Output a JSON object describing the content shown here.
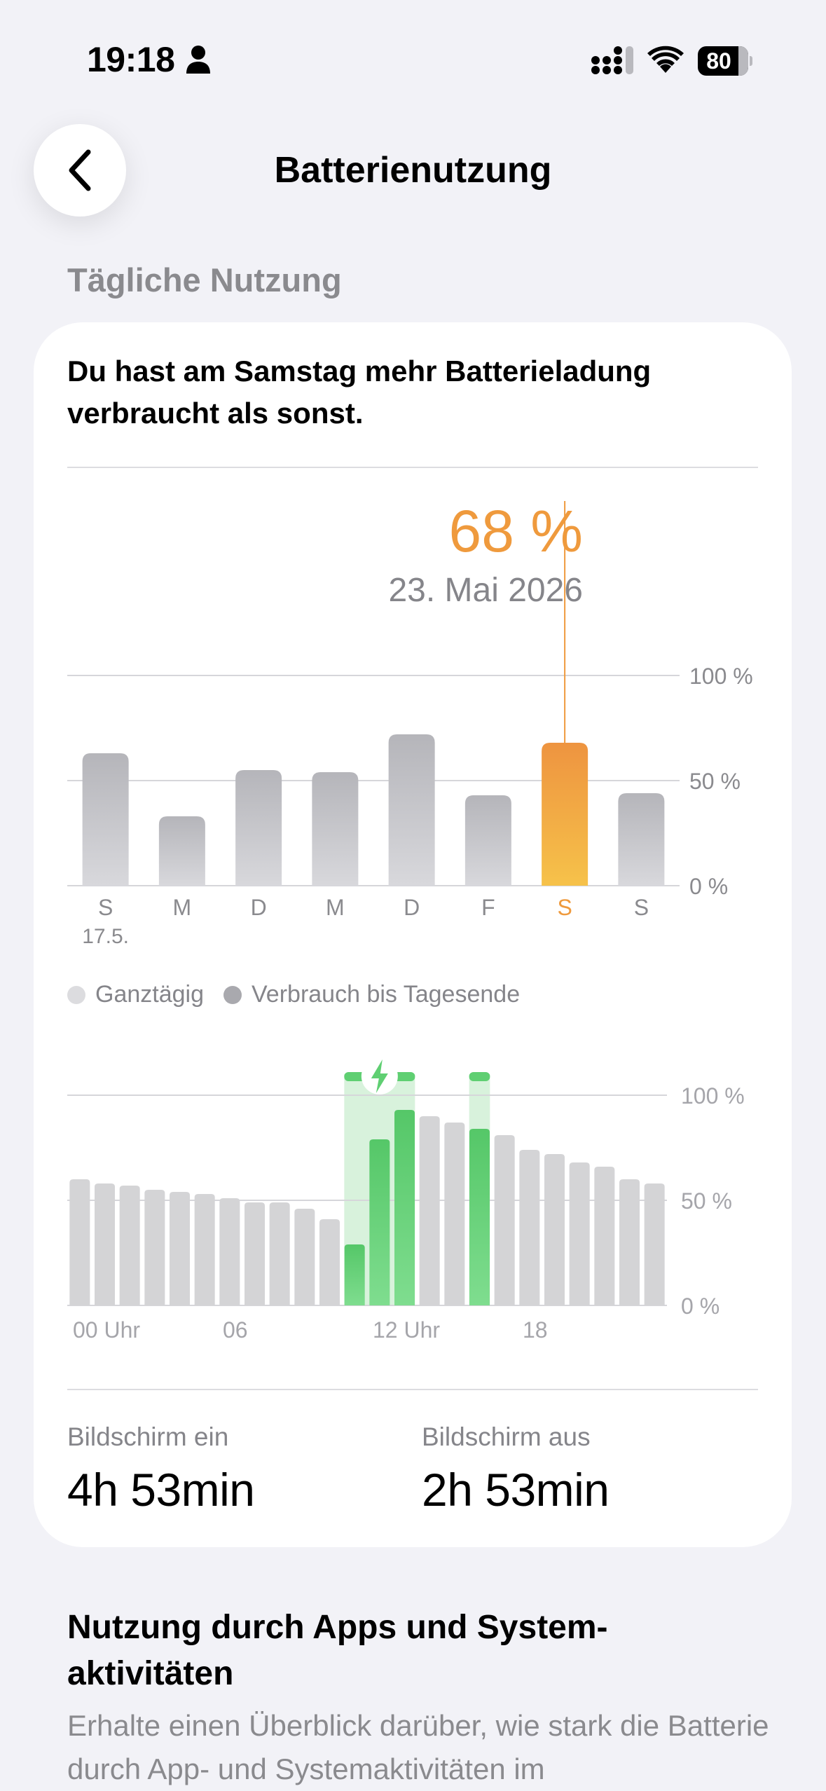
{
  "status_bar": {
    "time": "19:18",
    "battery_level": "80"
  },
  "nav": {
    "title": "Batterienutzung"
  },
  "section_header": "Tägliche Nutzung",
  "card": {
    "insight": "Du hast am Samstag mehr Batterieladung verbraucht als sonst.",
    "selection": {
      "value": "68 %",
      "date": "23. Mai 2026"
    },
    "legend": [
      "Ganztägig",
      "Verbrauch bis Tagesende"
    ],
    "stats": [
      {
        "label": "Bildschirm ein",
        "value": "4h 53min"
      },
      {
        "label": "Bildschirm aus",
        "value": "2h 53min"
      }
    ]
  },
  "chart_data": [
    {
      "type": "bar",
      "categories": [
        "S",
        "M",
        "D",
        "M",
        "D",
        "F",
        "S",
        "S"
      ],
      "sublabels": [
        "17.5.",
        "",
        "",
        "",
        "",
        "",
        "",
        ""
      ],
      "values": [
        63,
        33,
        55,
        54,
        72,
        43,
        68,
        44
      ],
      "selected_index": 6,
      "ylim": [
        0,
        100
      ],
      "yticks": [
        "100 %",
        "50 %",
        "0 %"
      ],
      "ytick_values": [
        100,
        50,
        0
      ],
      "colors": {
        "bar": "#b5b5ba",
        "selected": "#f2a23c",
        "selected_light": "#f6c24a"
      }
    },
    {
      "type": "bar",
      "x": [
        0,
        1,
        2,
        3,
        4,
        5,
        6,
        7,
        8,
        9,
        10,
        11,
        12,
        13,
        14,
        15,
        16,
        17,
        18,
        19,
        20,
        21,
        22,
        23
      ],
      "values": [
        60,
        58,
        57,
        55,
        54,
        53,
        51,
        49,
        49,
        46,
        41,
        29,
        79,
        93,
        90,
        87,
        84,
        81,
        74,
        72,
        68,
        66,
        60,
        58
      ],
      "charging": [
        false,
        false,
        false,
        false,
        false,
        false,
        false,
        false,
        false,
        false,
        false,
        true,
        true,
        true,
        false,
        false,
        true,
        false,
        false,
        false,
        false,
        false,
        false,
        false
      ],
      "charging_periods": [
        [
          11,
          13
        ],
        [
          16,
          16
        ]
      ],
      "xticks": [
        {
          "hour": 0,
          "label": "00 Uhr"
        },
        {
          "hour": 6,
          "label": "06"
        },
        {
          "hour": 12,
          "label": "12 Uhr"
        },
        {
          "hour": 18,
          "label": "18"
        }
      ],
      "ylim": [
        0,
        100
      ],
      "yticks": [
        "100 %",
        "50 %",
        "0 %"
      ],
      "ytick_values": [
        100,
        50,
        0
      ],
      "colors": {
        "bar": "#d4d4d6",
        "charging": "#5fcf72",
        "charging_band": "#d8f2dc"
      }
    }
  ],
  "apps_section": {
    "title": "Nutzung durch Apps und System-aktivitäten",
    "description": "Erhalte einen Überblick darüber, wie stark die Batterie durch App- und Systemaktivitäten im"
  }
}
